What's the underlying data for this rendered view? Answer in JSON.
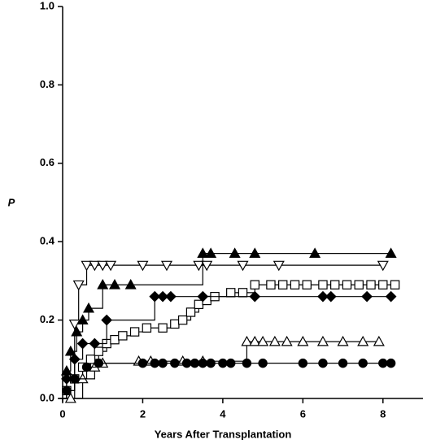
{
  "chart_data": {
    "type": "step",
    "xlabel": "Years After Transplantation",
    "ylabel": "P",
    "xlim": [
      0,
      9
    ],
    "ylim": [
      0,
      1
    ],
    "xticks": [
      0,
      2,
      4,
      6,
      8
    ],
    "yticks": [
      {
        "value": 0,
        "label": "0.0"
      },
      0.2,
      0.4,
      0.6,
      0.8,
      {
        "value": 1,
        "label": "1.0"
      }
    ],
    "series": [
      {
        "marker": "triangle-down",
        "fill": "open",
        "color": "#000000",
        "x": [
          0.3,
          0.4,
          0.6,
          0.8,
          1.0,
          1.2,
          2.0,
          2.6,
          3.4,
          3.6,
          4.5,
          5.4,
          8.0
        ],
        "values": [
          0.19,
          0.29,
          0.34,
          0.34,
          0.34,
          0.34,
          0.34,
          0.34,
          0.34,
          0.34,
          0.34,
          0.34,
          0.34
        ]
      },
      {
        "marker": "triangle-up",
        "fill": "solid",
        "color": "#000000",
        "x": [
          0.1,
          0.2,
          0.35,
          0.5,
          0.65,
          1.0,
          1.3,
          1.7,
          3.5,
          3.7,
          4.3,
          4.8,
          6.3,
          8.2
        ],
        "values": [
          0.07,
          0.12,
          0.17,
          0.2,
          0.23,
          0.29,
          0.29,
          0.29,
          0.37,
          0.37,
          0.37,
          0.37,
          0.37,
          0.37
        ]
      },
      {
        "marker": "square",
        "fill": "open",
        "color": "#000000",
        "x": [
          0.1,
          0.3,
          0.5,
          0.7,
          0.9,
          1.1,
          1.3,
          1.5,
          1.8,
          2.1,
          2.5,
          2.8,
          3.0,
          3.2,
          3.4,
          3.6,
          3.8,
          4.2,
          4.5,
          4.8,
          5.2,
          5.5,
          5.8,
          6.1,
          6.5,
          6.8,
          7.1,
          7.4,
          7.7,
          8.0,
          8.3
        ],
        "values": [
          0.02,
          0.05,
          0.08,
          0.1,
          0.12,
          0.14,
          0.15,
          0.16,
          0.17,
          0.18,
          0.18,
          0.19,
          0.2,
          0.22,
          0.24,
          0.25,
          0.26,
          0.27,
          0.27,
          0.29,
          0.29,
          0.29,
          0.29,
          0.29,
          0.29,
          0.29,
          0.29,
          0.29,
          0.29,
          0.29,
          0.29
        ]
      },
      {
        "marker": "diamond",
        "fill": "solid",
        "color": "#000000",
        "x": [
          0.1,
          0.3,
          0.5,
          0.8,
          1.1,
          2.3,
          2.5,
          2.7,
          3.5,
          4.8,
          6.5,
          6.7,
          7.6,
          8.2
        ],
        "values": [
          0.05,
          0.1,
          0.14,
          0.14,
          0.2,
          0.26,
          0.26,
          0.26,
          0.26,
          0.26,
          0.26,
          0.26,
          0.26,
          0.26
        ]
      },
      {
        "marker": "triangle-up",
        "fill": "open",
        "color": "#000000",
        "x": [
          0.2,
          0.5,
          0.8,
          1.0,
          1.9,
          2.2,
          3.0,
          3.5,
          4.6,
          4.8,
          5.0,
          5.3,
          5.6,
          6.0,
          6.5,
          7.0,
          7.5,
          7.9
        ],
        "values": [
          0.0,
          0.05,
          0.08,
          0.09,
          0.095,
          0.095,
          0.095,
          0.095,
          0.145,
          0.145,
          0.145,
          0.145,
          0.145,
          0.145,
          0.145,
          0.145,
          0.145,
          0.145
        ]
      },
      {
        "marker": "circle",
        "fill": "solid",
        "color": "#000000",
        "x": [
          0.1,
          0.3,
          0.6,
          0.9,
          2.0,
          2.3,
          2.5,
          2.8,
          3.1,
          3.3,
          3.5,
          3.7,
          4.0,
          4.2,
          4.6,
          5.0,
          6.0,
          6.5,
          7.0,
          7.5,
          8.0,
          8.2
        ],
        "values": [
          0.02,
          0.05,
          0.08,
          0.09,
          0.09,
          0.09,
          0.09,
          0.09,
          0.09,
          0.09,
          0.09,
          0.09,
          0.09,
          0.09,
          0.09,
          0.09,
          0.09,
          0.09,
          0.09,
          0.09,
          0.09,
          0.09
        ]
      }
    ]
  }
}
